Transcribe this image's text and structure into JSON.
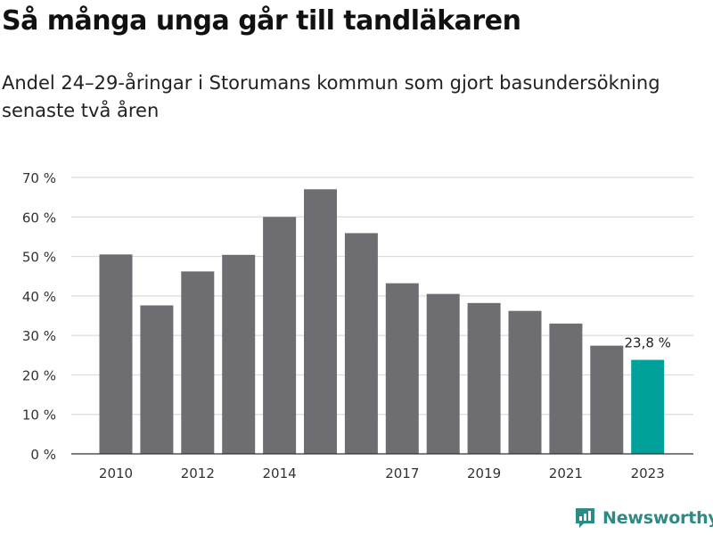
{
  "header": {
    "title": "Så många unga går till tandläkaren",
    "subtitle": "Andel 24–29-åringar i Storumans kommun som gjort basundersökning senaste två åren"
  },
  "brand": {
    "name": "Newsworthy",
    "icon": "newsworthy-logo-icon",
    "color": "#2e8a86"
  },
  "chart_data": {
    "type": "bar",
    "title": "Så många unga går till tandläkaren",
    "subtitle": "Andel 24–29-åringar i Storumans kommun som gjort basundersökning senaste två åren",
    "xlabel": "",
    "ylabel": "",
    "categories": [
      "2010",
      "2011",
      "2012",
      "2013",
      "2014",
      "2015",
      "2016",
      "2017",
      "2018",
      "2019",
      "2020",
      "2021",
      "2022",
      "2023"
    ],
    "x_tick_labels": [
      "2010",
      "",
      "2012",
      "",
      "2014",
      "",
      "",
      "2017",
      "",
      "2019",
      "",
      "2021",
      "",
      "2023"
    ],
    "values": [
      50.5,
      37.6,
      46.2,
      50.4,
      60.0,
      67.0,
      55.9,
      43.2,
      40.5,
      38.2,
      36.2,
      33.0,
      27.4,
      23.8
    ],
    "ylim": [
      0,
      70
    ],
    "y_ticks": [
      0,
      10,
      20,
      30,
      40,
      50,
      60,
      70
    ],
    "y_tick_labels": [
      "0 %",
      "10 %",
      "20 %",
      "30 %",
      "40 %",
      "50 %",
      "60 %",
      "70 %"
    ],
    "grid": true,
    "bar_color": "#6d6d72",
    "highlight_color": "#00a19a",
    "highlight_index": 13,
    "annotation": {
      "index": 13,
      "text": "23,8 %"
    }
  }
}
